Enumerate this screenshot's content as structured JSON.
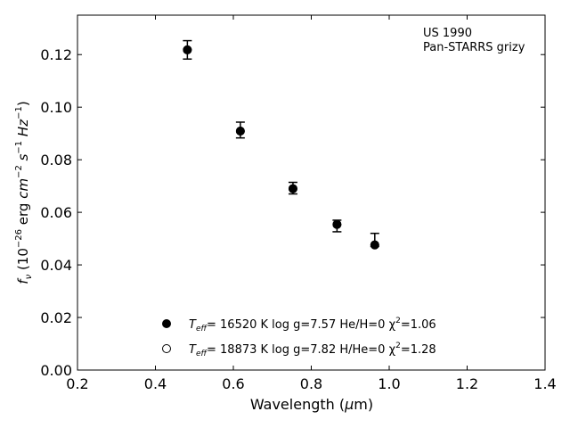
{
  "chart_data": {
    "type": "scatter",
    "annotation": {
      "line1": "US 1990",
      "line2": "Pan-STARRS grizy"
    },
    "xlabel": {
      "main": "Wavelength (",
      "mu": "μ",
      "unit": "m)"
    },
    "ylabel": "f_ν (10^-26 erg cm^-2 s^-1 Hz^-1)",
    "xlim": [
      0.2,
      1.4
    ],
    "ylim": [
      0.0,
      0.135
    ],
    "xticks": [
      0.2,
      0.4,
      0.6,
      0.8,
      1.0,
      1.2,
      1.4
    ],
    "xtick_labels": [
      "0.2",
      "0.4",
      "0.6",
      "0.8",
      "1.0",
      "1.2",
      "1.4"
    ],
    "yticks": [
      0.0,
      0.02,
      0.04,
      0.06,
      0.08,
      0.1,
      0.12
    ],
    "ytick_labels": [
      "0.00",
      "0.02",
      "0.04",
      "0.06",
      "0.08",
      "0.10",
      "0.12"
    ],
    "grid": false,
    "legend_position": "bottom-center",
    "observed": {
      "x": [
        0.482,
        0.618,
        0.753,
        0.866,
        0.963
      ],
      "y": [
        0.1218,
        0.0913,
        0.0692,
        0.0548,
        0.0495
      ],
      "yerr": [
        0.0035,
        0.003,
        0.0022,
        0.0022,
        0.0025
      ]
    },
    "series": [
      {
        "marker": "filled-circle",
        "x": [
          0.482,
          0.618,
          0.753,
          0.866,
          0.963
        ],
        "y": [
          0.1218,
          0.0909,
          0.069,
          0.0554,
          0.0476
        ],
        "label": {
          "teff": "T",
          "sub": "eff",
          "rest": "= 16520 K  log g=7.57  He/H=0  χ",
          "sup": "2",
          "chi": "=1.06"
        }
      },
      {
        "marker": "open-circle",
        "x": [
          0.482,
          0.618,
          0.753,
          0.866,
          0.963
        ],
        "y": [
          0.1218,
          0.0909,
          0.069,
          0.0554,
          0.0476
        ],
        "label": {
          "teff": "T",
          "sub": "eff",
          "rest": "= 18873 K  log g=7.82  H/He=0  χ",
          "sup": "2",
          "chi": "=1.28"
        }
      }
    ]
  }
}
